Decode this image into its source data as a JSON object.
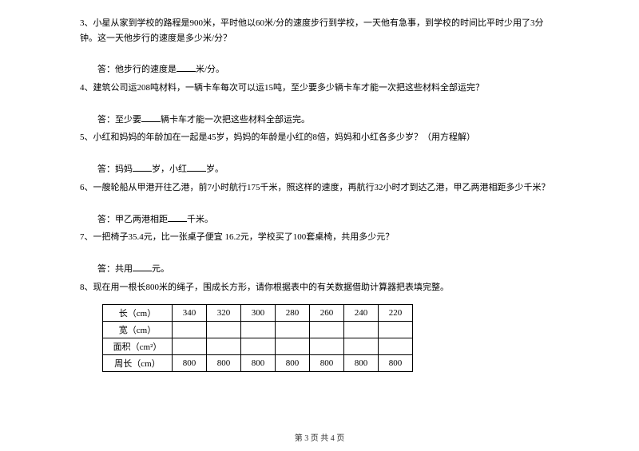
{
  "q3": {
    "text": "3、小星从家到学校的路程是900米，平时他以60米/分的速度步行到学校，一天他有急事，到学校的时间比平时少用了3分钟。这一天他步行的速度是多少米/分？",
    "answer_prefix": "答：他步行的速度是",
    "answer_suffix": "米/分。"
  },
  "q4": {
    "text": "4、建筑公司运208吨材料，一辆卡车每次可以运15吨，至少要多少辆卡车才能一次把这些材料全部运完？",
    "answer_prefix": "答：至少要",
    "answer_suffix": "辆卡车才能一次把这些材料全部运完。"
  },
  "q5": {
    "text": "5、小红和妈妈的年龄加在一起是45岁，妈妈的年龄是小红的8倍，妈妈和小红各多少岁？（用方程解）",
    "answer_p1": "答：妈妈",
    "answer_p2": "岁，小红",
    "answer_p3": "岁。"
  },
  "q6": {
    "text": "6、一艘轮船从甲港开往乙港，前7小时航行175千米，照这样的速度，再航行32小时才到达乙港，甲乙两港相距多少千米？",
    "answer_prefix": "答：甲乙两港相距",
    "answer_suffix": "千米。"
  },
  "q7": {
    "text": "7、一把椅子35.4元，比一张桌子便宜 16.2元，学校买了100套桌椅，共用多少元？",
    "answer_prefix": "答：共用",
    "answer_suffix": "元。"
  },
  "q8": {
    "text": "8、现在用一根长800米的绳子，围成长方形，请你根据表中的有关数据借助计算器把表填完整。"
  },
  "table": {
    "row_headers": [
      "长（cm）",
      "宽（cm）",
      "面积（cm²）",
      "周长（cm）"
    ],
    "lengths": [
      "340",
      "320",
      "300",
      "280",
      "260",
      "240",
      "220"
    ],
    "widths": [
      "",
      "",
      "",
      "",
      "",
      "",
      ""
    ],
    "areas": [
      "",
      "",
      "",
      "",
      "",
      "",
      ""
    ],
    "perimeters": [
      "800",
      "800",
      "800",
      "800",
      "800",
      "800",
      "800"
    ]
  },
  "footer": "第 3 页 共 4 页"
}
